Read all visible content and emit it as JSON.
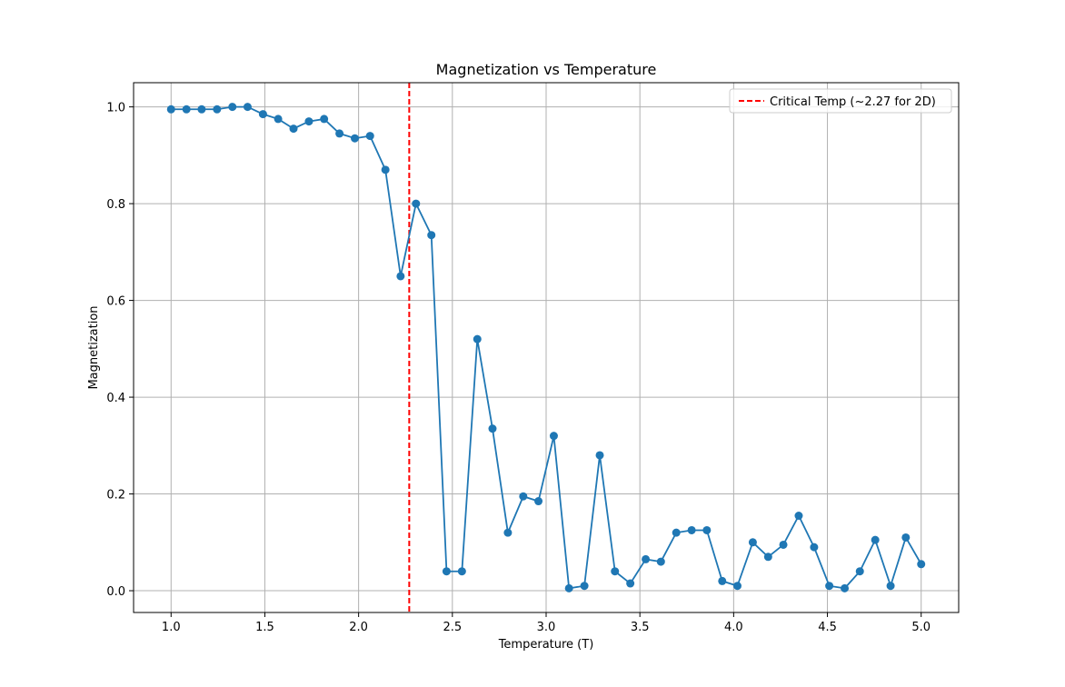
{
  "chart_data": {
    "type": "line",
    "title": "Magnetization vs Temperature",
    "xlabel": "Temperature (T)",
    "ylabel": "Magnetization",
    "xlim": [
      0.8,
      5.2
    ],
    "ylim": [
      -0.045,
      1.05
    ],
    "xticks": [
      1.0,
      1.5,
      2.0,
      2.5,
      3.0,
      3.5,
      4.0,
      4.5,
      5.0
    ],
    "xtick_labels": [
      "1.0",
      "1.5",
      "2.0",
      "2.5",
      "3.0",
      "3.5",
      "4.0",
      "4.5",
      "5.0"
    ],
    "yticks": [
      0.0,
      0.2,
      0.4,
      0.6,
      0.8,
      1.0
    ],
    "ytick_labels": [
      "0.0",
      "0.2",
      "0.4",
      "0.6",
      "0.8",
      "1.0"
    ],
    "grid": true,
    "legend_position": "top-right",
    "series": [
      {
        "color": "#1f77b4",
        "marker": "circle",
        "x": [
          1.0,
          1.082,
          1.163,
          1.245,
          1.327,
          1.408,
          1.49,
          1.571,
          1.653,
          1.735,
          1.816,
          1.898,
          1.98,
          2.061,
          2.143,
          2.224,
          2.306,
          2.388,
          2.469,
          2.551,
          2.633,
          2.714,
          2.796,
          2.878,
          2.959,
          3.041,
          3.122,
          3.204,
          3.286,
          3.367,
          3.449,
          3.531,
          3.612,
          3.694,
          3.776,
          3.857,
          3.939,
          4.02,
          4.102,
          4.184,
          4.265,
          4.347,
          4.429,
          4.51,
          4.592,
          4.673,
          4.755,
          4.837,
          4.918,
          5.0
        ],
        "y": [
          0.995,
          0.995,
          0.995,
          0.995,
          1.0,
          1.0,
          0.985,
          0.975,
          0.955,
          0.97,
          0.975,
          0.945,
          0.935,
          0.94,
          0.87,
          0.65,
          0.8,
          0.735,
          0.04,
          0.04,
          0.52,
          0.335,
          0.12,
          0.195,
          0.185,
          0.32,
          0.005,
          0.01,
          0.28,
          0.04,
          0.015,
          0.065,
          0.06,
          0.12,
          0.125,
          0.125,
          0.02,
          0.01,
          0.1,
          0.07,
          0.095,
          0.155,
          0.09,
          0.01,
          0.005,
          0.04,
          0.105,
          0.01,
          0.11,
          0.055
        ]
      }
    ],
    "reference_lines": [
      {
        "orientation": "vertical",
        "x": 2.27,
        "color": "#ff0000",
        "style": "dashed",
        "label": "Critical Temp (~2.27 for 2D)"
      }
    ]
  }
}
